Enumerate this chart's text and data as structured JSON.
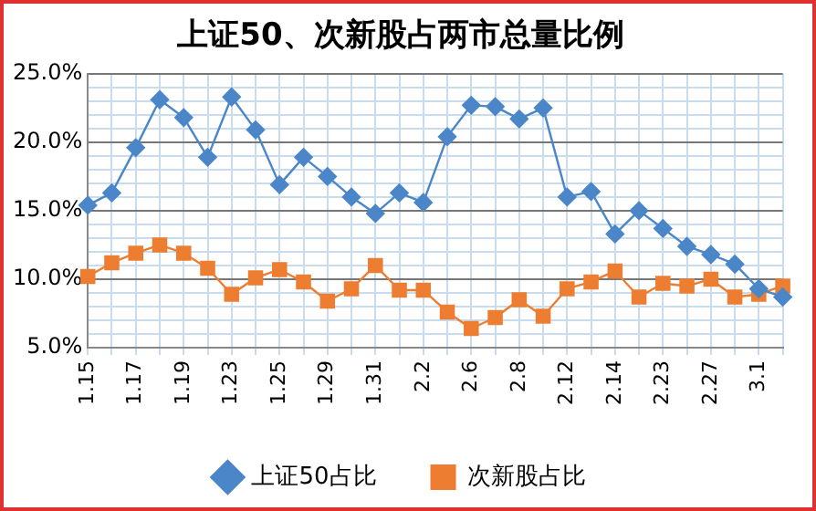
{
  "chart_data": {
    "type": "line",
    "title": "上证50、次新股占两市总量比例",
    "categories": [
      "1.15",
      null,
      "1.17",
      null,
      "1.19",
      null,
      "1.23",
      null,
      "1.25",
      null,
      "1.29",
      null,
      "1.31",
      null,
      "2.2",
      null,
      "2.6",
      null,
      "2.8",
      null,
      "2.12",
      null,
      "2.14",
      null,
      "2.23",
      null,
      "2.27",
      null,
      "3.1",
      null
    ],
    "series": [
      {
        "name": "上证50占比",
        "color": "#4a86c8",
        "marker": "diamond",
        "values": [
          15.4,
          16.3,
          19.6,
          23.1,
          21.8,
          18.9,
          23.3,
          20.9,
          16.9,
          18.9,
          17.5,
          16.0,
          14.8,
          16.3,
          15.6,
          20.4,
          22.7,
          22.6,
          21.7,
          22.5,
          16.0,
          16.4,
          13.3,
          15.0,
          13.7,
          12.4,
          11.8,
          11.1,
          9.3,
          8.7
        ]
      },
      {
        "name": "次新股占比",
        "color": "#ed7d31",
        "marker": "square",
        "values": [
          10.2,
          11.2,
          11.9,
          12.5,
          11.9,
          10.8,
          8.9,
          10.1,
          10.7,
          9.8,
          8.4,
          9.3,
          11.0,
          9.2,
          9.2,
          7.6,
          6.4,
          7.2,
          8.5,
          7.3,
          9.3,
          9.8,
          10.6,
          8.7,
          9.7,
          9.5,
          10.0,
          8.7,
          8.9,
          9.5
        ]
      }
    ],
    "ylim": [
      5,
      25
    ],
    "yticks": [
      {
        "value": 5,
        "label": "5.0%"
      },
      {
        "value": 6,
        "label": null
      },
      {
        "value": 7,
        "label": null
      },
      {
        "value": 8,
        "label": null
      },
      {
        "value": 9,
        "label": null
      },
      {
        "value": 10,
        "label": "10.0%"
      },
      {
        "value": 11,
        "label": null
      },
      {
        "value": 12,
        "label": null
      },
      {
        "value": 13,
        "label": null
      },
      {
        "value": 14,
        "label": null
      },
      {
        "value": 15,
        "label": "15.0%"
      },
      {
        "value": 16,
        "label": null
      },
      {
        "value": 17,
        "label": null
      },
      {
        "value": 18,
        "label": null
      },
      {
        "value": 19,
        "label": null
      },
      {
        "value": 20,
        "label": "20.0%"
      },
      {
        "value": 21,
        "label": null
      },
      {
        "value": 22,
        "label": null
      },
      {
        "value": 23,
        "label": null
      },
      {
        "value": 24,
        "label": null
      },
      {
        "value": 25,
        "label": "25.0%"
      }
    ],
    "grid": true,
    "legend": "bottom"
  }
}
